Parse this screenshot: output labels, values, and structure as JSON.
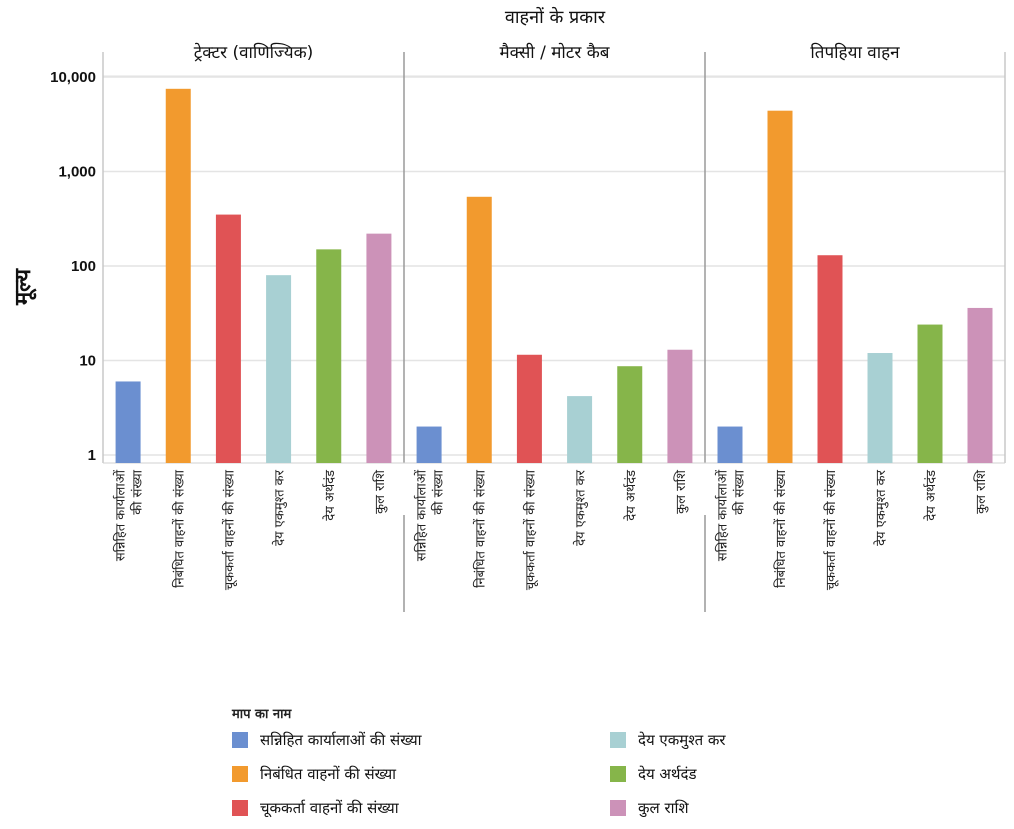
{
  "chart_data": {
    "type": "bar",
    "title": "वाहनों के प्रकार",
    "ylabel": "मूल्य",
    "yscale": "log",
    "ylim": [
      1,
      15000
    ],
    "yticks": [
      1,
      10,
      100,
      1000,
      10000
    ],
    "ytick_labels": [
      "1",
      "10",
      "100",
      "1,000",
      "10,000"
    ],
    "grid": true,
    "legend_position": "bottom-left",
    "legend_title": "माप का नाम",
    "categories": [
      "सन्निहित कार्यालाओं की संख्या",
      "निबंधित वाहनों की संख्या",
      "चूककर्ता वाहनों की संख्या",
      "देय एकमुश्त कर",
      "देय अर्थदंड",
      "कुल राशि"
    ],
    "category_labels": [
      [
        "सन्निहित कार्यालाओं",
        "की संख्या"
      ],
      [
        "निबंधित वाहनों की संख्या"
      ],
      [
        "चूककर्ता वाहनों की संख्या"
      ],
      [
        "देय एकमुश्त कर"
      ],
      [
        "देय अर्थदंड"
      ],
      [
        "कुल राशि"
      ]
    ],
    "colors": [
      "#6b8fd0",
      "#f29a2e",
      "#e05355",
      "#a8d0d3",
      "#86b54a",
      "#cc92b8"
    ],
    "panels": [
      {
        "name": "ट्रेक्टर (वाणिज्यिक)",
        "values": [
          6,
          7500,
          350,
          80,
          150,
          220
        ]
      },
      {
        "name": "मैक्सी / मोटर कैब",
        "values": [
          2,
          540,
          11.5,
          4.2,
          8.7,
          13
        ]
      },
      {
        "name": "तिपहिया वाहन",
        "values": [
          2,
          4400,
          130,
          12,
          24,
          36
        ]
      }
    ]
  }
}
